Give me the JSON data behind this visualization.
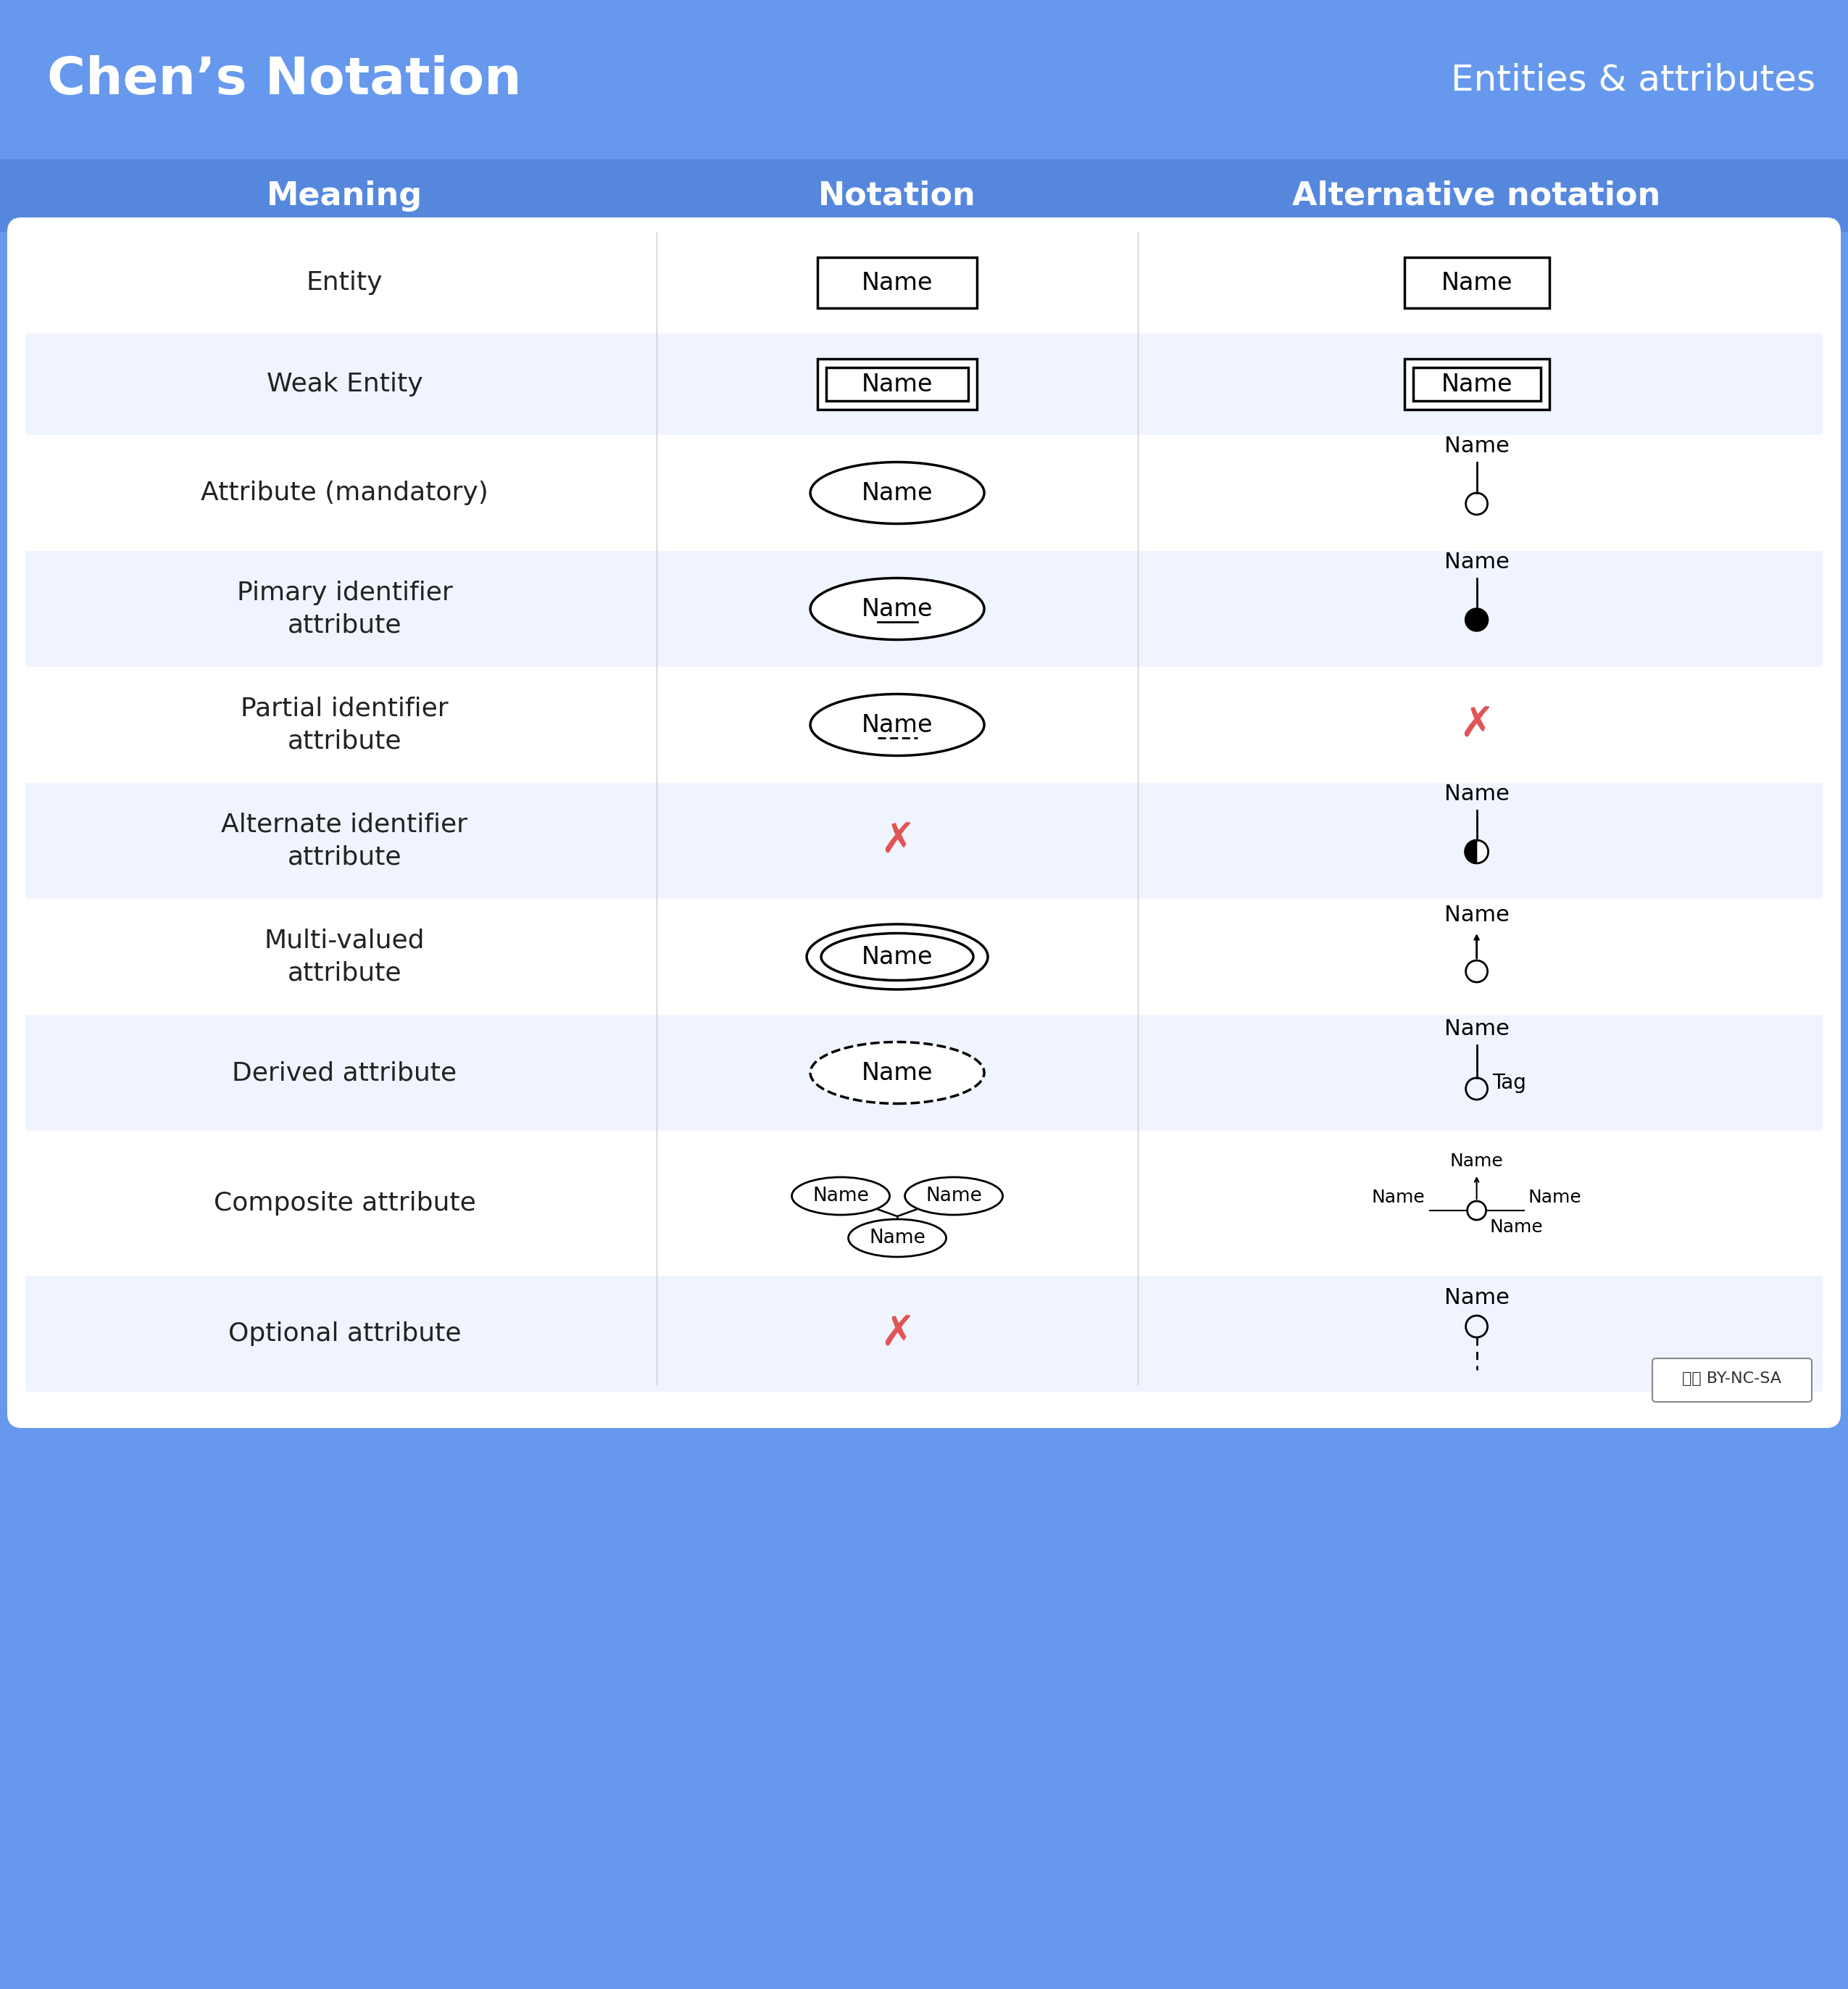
{
  "title": "Chen’s Notation",
  "subtitle": "Entities & attributes",
  "header_bg": "#6699ee",
  "header_text_color": "#ffffff",
  "col_headers": [
    "Meaning",
    "Notation",
    "Alternative notation"
  ],
  "col_header_color": "#5588dd",
  "col_header_text": "#ffffff",
  "table_bg": "#ffffff",
  "alt_row_bg": "#f0f4ff",
  "rows": [
    {
      "meaning": "Entity",
      "row_bg": "#ffffff"
    },
    {
      "meaning": "Weak Entity",
      "row_bg": "#f0f4ff"
    },
    {
      "meaning": "Attribute (mandatory)",
      "row_bg": "#ffffff"
    },
    {
      "meaning": "Pimary identifier\nattribute",
      "row_bg": "#f0f4ff"
    },
    {
      "meaning": "Partial identifier\nattribute",
      "row_bg": "#ffffff"
    },
    {
      "meaning": "Alternate identifier\nattribute",
      "row_bg": "#f0f4ff"
    },
    {
      "meaning": "Multi-valued\nattribute",
      "row_bg": "#ffffff"
    },
    {
      "meaning": "Derived attribute",
      "row_bg": "#f0f4ff"
    },
    {
      "meaning": "Composite attribute",
      "row_bg": "#ffffff"
    },
    {
      "meaning": "Optional attribute",
      "row_bg": "#f0f4ff"
    }
  ],
  "red_x_color": "#e05555",
  "border_color": "#333333",
  "text_color": "#222222",
  "name_text": "Name",
  "tag_text": "Tag"
}
